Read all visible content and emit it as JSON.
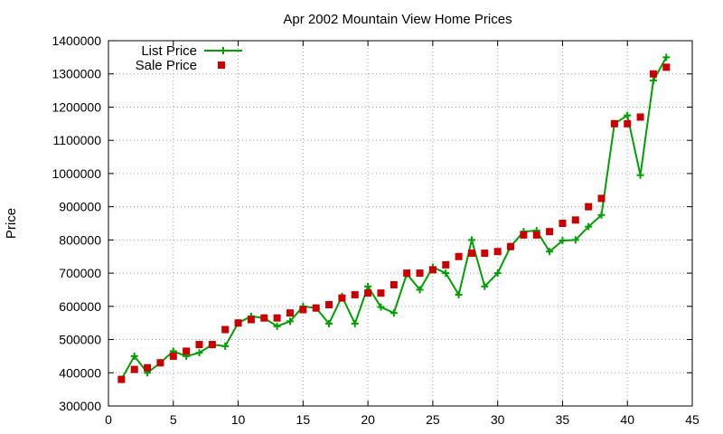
{
  "chart_data": {
    "type": "line",
    "title": "Apr 2002 Mountain View Home Prices",
    "xlabel": "",
    "ylabel": "Price",
    "xlim": [
      0,
      45
    ],
    "ylim": [
      300000,
      1400000
    ],
    "xticks": [
      "0",
      "5",
      "10",
      "15",
      "20",
      "25",
      "30",
      "35",
      "40",
      "45"
    ],
    "yticks": [
      "300000",
      "400000",
      "500000",
      "600000",
      "700000",
      "800000",
      "900000",
      "1000000",
      "1100000",
      "1200000",
      "1300000",
      "1400000"
    ],
    "grid": true,
    "legend_position": "top-left",
    "series": [
      {
        "name": "List Price",
        "style": "line-plus",
        "color": "#00a000",
        "x": [
          1,
          2,
          3,
          4,
          5,
          6,
          7,
          8,
          9,
          10,
          11,
          12,
          13,
          14,
          15,
          16,
          17,
          18,
          19,
          20,
          21,
          22,
          23,
          24,
          25,
          26,
          27,
          28,
          29,
          30,
          31,
          32,
          33,
          34,
          35,
          36,
          37,
          38,
          39,
          40,
          41,
          42,
          43
        ],
        "y": [
          380000,
          450000,
          400000,
          430000,
          465000,
          450000,
          460000,
          485000,
          480000,
          550000,
          570000,
          565000,
          540000,
          555000,
          600000,
          595000,
          548000,
          630000,
          548000,
          660000,
          598000,
          580000,
          698000,
          650000,
          718000,
          700000,
          635000,
          800000,
          660000,
          700000,
          780000,
          825000,
          828000,
          765000,
          798000,
          800000,
          840000,
          875000,
          1150000,
          1175000,
          995000,
          1280000,
          1350000
        ]
      },
      {
        "name": "Sale Price",
        "style": "square-points",
        "color": "#cc0000",
        "x": [
          1,
          2,
          3,
          4,
          5,
          6,
          7,
          8,
          9,
          10,
          11,
          12,
          13,
          14,
          15,
          16,
          17,
          18,
          19,
          20,
          21,
          22,
          23,
          24,
          25,
          26,
          27,
          28,
          29,
          30,
          31,
          32,
          33,
          34,
          35,
          36,
          37,
          38,
          39,
          40,
          41,
          42,
          43
        ],
        "y": [
          380000,
          410000,
          415000,
          430000,
          450000,
          465000,
          485000,
          485000,
          530000,
          550000,
          560000,
          565000,
          565000,
          580000,
          590000,
          595000,
          605000,
          625000,
          635000,
          640000,
          640000,
          665000,
          700000,
          700000,
          710000,
          725000,
          750000,
          760000,
          760000,
          765000,
          780000,
          815000,
          815000,
          825000,
          850000,
          860000,
          900000,
          925000,
          1150000,
          1150000,
          1170000,
          1300000,
          1320000
        ]
      }
    ]
  }
}
